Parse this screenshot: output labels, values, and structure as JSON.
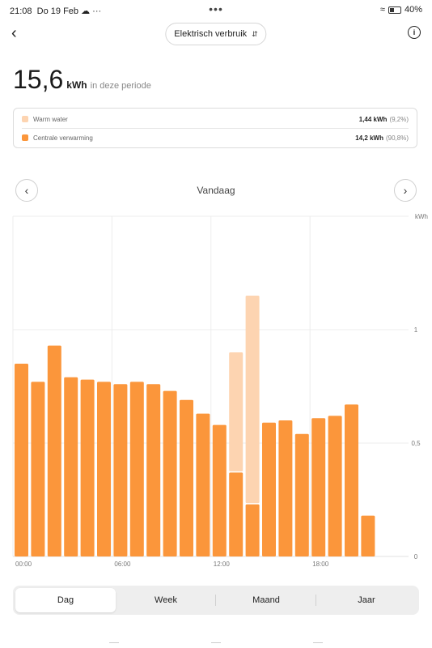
{
  "status": {
    "time": "21:08",
    "date": "Do 19 Feb",
    "battery": "40%"
  },
  "header": {
    "selector_label": "Elektrisch verbruik"
  },
  "summary": {
    "value": "15,6",
    "unit": "kWh",
    "suffix": "in deze periode"
  },
  "legend": [
    {
      "name": "Warm water",
      "amount": "1,44 kWh",
      "pct": "(9,2%)",
      "color": "#fdd4b1"
    },
    {
      "name": "Centrale verwarming",
      "amount": "14,2 kWh",
      "pct": "(90,8%)",
      "color": "#fb963b"
    }
  ],
  "period": {
    "label": "Vandaag"
  },
  "tabs": [
    "Dag",
    "Week",
    "Maand",
    "Jaar"
  ],
  "chart_data": {
    "type": "bar",
    "stacked": true,
    "ylabel": "kWh",
    "ylim": [
      0,
      1.5
    ],
    "yticks": [
      0,
      0.5,
      1
    ],
    "ytick_labels": [
      "0",
      "0,5",
      "1"
    ],
    "xtick_labels": [
      "00:00",
      "06:00",
      "12:00",
      "18:00"
    ],
    "xtick_hours": [
      0,
      6,
      12,
      18
    ],
    "hours": 24,
    "series": [
      {
        "name": "Centrale verwarming",
        "color": "#fb963b",
        "values": [
          0.85,
          0.77,
          0.93,
          0.79,
          0.78,
          0.77,
          0.76,
          0.77,
          0.76,
          0.73,
          0.69,
          0.63,
          0.58,
          0.37,
          0.23,
          0.59,
          0.6,
          0.54,
          0.61,
          0.62,
          0.67,
          0.18
        ]
      },
      {
        "name": "Warm water",
        "color": "#fdd4b1",
        "values": [
          0,
          0,
          0,
          0,
          0,
          0,
          0,
          0,
          0,
          0,
          0,
          0,
          0,
          0.53,
          0.92,
          0,
          0,
          0,
          0,
          0,
          0,
          0
        ]
      }
    ]
  }
}
